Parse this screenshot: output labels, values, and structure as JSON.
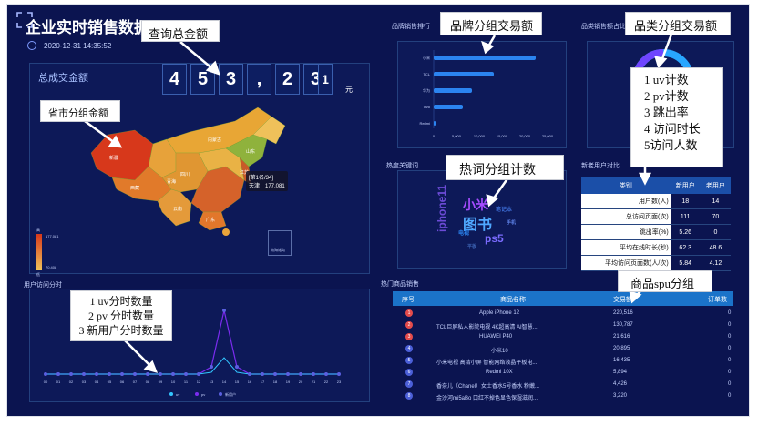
{
  "header": {
    "title": "企业实时销售数据",
    "datetime": "2020-12-31 14:35:52"
  },
  "total": {
    "label": "总成交金额",
    "digits": [
      "4",
      "5",
      "3",
      ",",
      "2",
      "3",
      "1"
    ],
    "unit": "元"
  },
  "map": {
    "label": "省市分组金额",
    "tooltip": [
      "[第1名/34]",
      "天津：177,081"
    ],
    "legend_max": "177,081",
    "legend_min": "70,408",
    "legend_high": "高",
    "legend_low": "低",
    "inset_label": "南海诸岛",
    "province_labels": [
      "新疆",
      "西藏",
      "青海",
      "内蒙古",
      "四川",
      "云南",
      "广东",
      "江苏",
      "山东"
    ]
  },
  "brand": {
    "panel_title": "品牌销售排行",
    "categories": [
      "小米",
      "TCL",
      "华为",
      "vivo",
      "Redmi"
    ],
    "ticks": [
      "0",
      "5,000",
      "10,000",
      "15,000",
      "20,000",
      "25,000"
    ]
  },
  "category": {
    "panel_title": "品类销售额占比"
  },
  "hotwords": {
    "panel_title": "热度关键词",
    "words": [
      "小米",
      "图书",
      "iphone11",
      "ps5",
      "笔记本",
      "电视",
      "手机",
      "平板"
    ]
  },
  "user_stats": {
    "panel_title": "新老用户对比",
    "columns": [
      "类别",
      "新用户",
      "老用户"
    ],
    "rows": [
      [
        "用户数(人)",
        "18",
        "14"
      ],
      [
        "总访问页面(次)",
        "111",
        "70"
      ],
      [
        "跳出率(%)",
        "5.26",
        "0"
      ],
      [
        "平均在线时长(秒)",
        "62.3",
        "48.6"
      ],
      [
        "平均访问页面数(人/次)",
        "5.84",
        "4.12"
      ]
    ]
  },
  "hourly": {
    "panel_title": "用户访问分时",
    "hours": [
      "00",
      "01",
      "02",
      "03",
      "04",
      "05",
      "06",
      "07",
      "08",
      "09",
      "10",
      "11",
      "12",
      "13",
      "14",
      "15",
      "16",
      "17",
      "18",
      "19",
      "20",
      "21",
      "22",
      "23"
    ],
    "legend": [
      "uv",
      "pv",
      "新用户"
    ]
  },
  "products": {
    "panel_title": "热门商品销售",
    "columns": [
      "序号",
      "商品名称",
      "交易额",
      "订单数"
    ],
    "rows": [
      [
        "1",
        "Apple iPhone 12",
        "220,516",
        "0"
      ],
      [
        "2",
        "TCL巨屏私人影院电视 4K超高清 AI智慧...",
        "130,787",
        "0"
      ],
      [
        "3",
        "HUAWEI P40",
        "21,616",
        "0"
      ],
      [
        "4",
        "小米10",
        "20,895",
        "0"
      ],
      [
        "5",
        "小米电视 高清小屏 智能网络液晶平板电...",
        "16,435",
        "0"
      ],
      [
        "6",
        "Redmi 10X",
        "5,894",
        "0"
      ],
      [
        "7",
        "香奈儿（Chanel）女士香水5号香水 粉嫩...",
        "4,426",
        "0"
      ],
      [
        "8",
        "金沙河mi5aBo 口红不掉色显色保湿滋润...",
        "3,220",
        "0"
      ]
    ]
  },
  "callouts": {
    "query_total": "查询总金额",
    "brand_group": "品牌分组交易额",
    "category_group": "品类分组交易额",
    "category_metrics": [
      "1 uv计数",
      "2 pv计数",
      "3 跳出率",
      "4 访问时长",
      "5访问人数"
    ],
    "hotword_group": "热词分组计数",
    "province_group": "省市分组金额",
    "hourly_metrics": [
      "1 uv分时数量",
      "2 pv 分时数量",
      "3 新用户分时数量"
    ],
    "spu_group": "商品spu分组"
  },
  "colors": {
    "background": "#0b1450",
    "accent": "#2b84f0",
    "map_high": "#d7381b",
    "map_low": "#f0c35a"
  }
}
